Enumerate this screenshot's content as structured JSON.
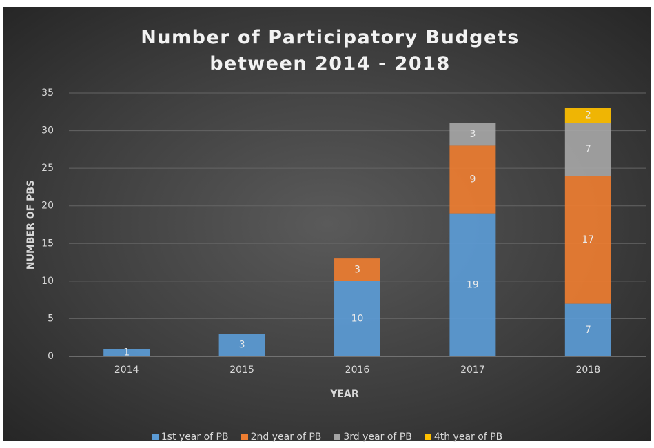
{
  "chart_data": {
    "type": "stacked_bar",
    "title": "Number of Participatory Budgets between 2014 - 2018",
    "x_label": "YEAR",
    "y_label": "NUMBER OF PBS",
    "categories": [
      "2014",
      "2015",
      "2016",
      "2017",
      "2018"
    ],
    "series": [
      {
        "name": "1st year of PB",
        "color": "#5b9bd5",
        "values": [
          1,
          3,
          10,
          19,
          7
        ]
      },
      {
        "name": "2nd year of PB",
        "color": "#ed7d31",
        "values": [
          null,
          null,
          3,
          9,
          17
        ]
      },
      {
        "name": "3rd year of PB",
        "color": "#a5a5a5",
        "values": [
          null,
          null,
          null,
          3,
          7
        ]
      },
      {
        "name": "4th year of PB",
        "color": "#ffc000",
        "values": [
          null,
          null,
          null,
          null,
          2
        ]
      }
    ],
    "ylim": [
      0,
      35
    ],
    "yticks": [
      0,
      5,
      10,
      15,
      20,
      25,
      30,
      35
    ],
    "grid": true,
    "legend": "bottom",
    "data_labels": true
  }
}
